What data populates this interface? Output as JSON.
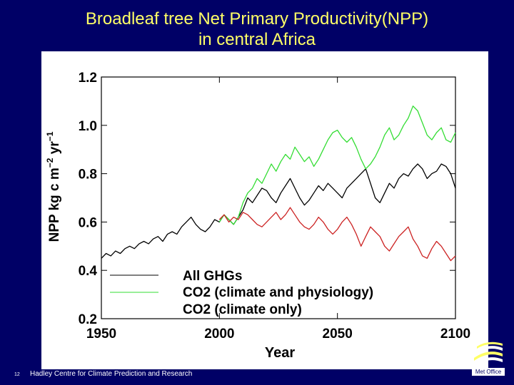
{
  "slide": {
    "title_line1": "Broadleaf tree Net Primary Productivity(NPP)",
    "title_line2": "in central Africa",
    "footer": "Hadley Centre for Climate Prediction and Research",
    "slide_number": "12",
    "logo_text": "Met Office"
  },
  "colors": {
    "background": "#000066",
    "title": "#ffff66",
    "black": "#000000",
    "green": "#33dd33",
    "red": "#cc2222"
  },
  "chart_data": {
    "type": "line",
    "title": "",
    "xlabel": "Year",
    "ylabel": "NPP kg c m⁻² yr⁻¹",
    "ylabel_main": "NPP kg c m",
    "ylabel_sup1": "−2",
    "ylabel_mid": " yr",
    "ylabel_sup2": "−1",
    "xlim": [
      1950,
      2100
    ],
    "ylim": [
      0.2,
      1.2
    ],
    "xticks": [
      1950,
      2000,
      2050,
      2100
    ],
    "xtick_labels": [
      "1950",
      "2000",
      "2050",
      "2100"
    ],
    "yticks": [
      0.2,
      0.4,
      0.6,
      0.8,
      1.0,
      1.2
    ],
    "ytick_labels": [
      "0.2",
      "0.4",
      "0.6",
      "0.8",
      "1.0",
      "1.2"
    ],
    "legend_placement": "bottom",
    "legend": [
      "All GHGs",
      "CO2 (climate and physiology)",
      "CO2 (climate only)"
    ],
    "series": [
      {
        "name": "All GHGs",
        "color": "#000000",
        "x": [
          1950,
          1952,
          1954,
          1956,
          1958,
          1960,
          1962,
          1964,
          1966,
          1968,
          1970,
          1972,
          1974,
          1976,
          1978,
          1980,
          1982,
          1984,
          1986,
          1988,
          1990,
          1992,
          1994,
          1996,
          1998,
          2000,
          2002,
          2004,
          2006,
          2008,
          2010,
          2012,
          2014,
          2016,
          2018,
          2020,
          2022,
          2024,
          2026,
          2028,
          2030,
          2032,
          2034,
          2036,
          2038,
          2040,
          2042,
          2044,
          2046,
          2048,
          2050,
          2052,
          2054,
          2056,
          2058,
          2060,
          2062,
          2064,
          2066,
          2068,
          2070,
          2072,
          2074,
          2076,
          2078,
          2080,
          2082,
          2084,
          2086,
          2088,
          2090,
          2092,
          2094,
          2096,
          2098,
          2100
        ],
        "y": [
          0.45,
          0.47,
          0.46,
          0.48,
          0.47,
          0.49,
          0.5,
          0.49,
          0.51,
          0.52,
          0.51,
          0.53,
          0.54,
          0.52,
          0.55,
          0.56,
          0.55,
          0.58,
          0.6,
          0.62,
          0.59,
          0.57,
          0.56,
          0.58,
          0.61,
          0.6,
          0.63,
          0.61,
          0.59,
          0.62,
          0.65,
          0.7,
          0.68,
          0.71,
          0.74,
          0.73,
          0.7,
          0.68,
          0.72,
          0.75,
          0.78,
          0.74,
          0.7,
          0.67,
          0.69,
          0.72,
          0.75,
          0.73,
          0.76,
          0.74,
          0.72,
          0.7,
          0.74,
          0.76,
          0.78,
          0.8,
          0.82,
          0.76,
          0.7,
          0.68,
          0.72,
          0.76,
          0.74,
          0.78,
          0.8,
          0.79,
          0.82,
          0.84,
          0.82,
          0.78,
          0.8,
          0.81,
          0.84,
          0.83,
          0.8,
          0.74
        ]
      },
      {
        "name": "CO2 (climate and physiology)",
        "color": "#33dd33",
        "x": [
          2000,
          2002,
          2004,
          2006,
          2008,
          2010,
          2012,
          2014,
          2016,
          2018,
          2020,
          2022,
          2024,
          2026,
          2028,
          2030,
          2032,
          2034,
          2036,
          2038,
          2040,
          2042,
          2044,
          2046,
          2048,
          2050,
          2052,
          2054,
          2056,
          2058,
          2060,
          2062,
          2064,
          2066,
          2068,
          2070,
          2072,
          2074,
          2076,
          2078,
          2080,
          2082,
          2084,
          2086,
          2088,
          2090,
          2092,
          2094,
          2096,
          2098,
          2100
        ],
        "y": [
          0.6,
          0.63,
          0.61,
          0.59,
          0.62,
          0.68,
          0.72,
          0.74,
          0.78,
          0.76,
          0.8,
          0.84,
          0.81,
          0.85,
          0.88,
          0.86,
          0.91,
          0.88,
          0.85,
          0.87,
          0.83,
          0.86,
          0.9,
          0.94,
          0.97,
          0.98,
          0.95,
          0.93,
          0.95,
          0.91,
          0.86,
          0.82,
          0.84,
          0.87,
          0.91,
          0.96,
          0.99,
          0.94,
          0.96,
          1.0,
          1.03,
          1.08,
          1.06,
          1.01,
          0.96,
          0.94,
          0.97,
          0.99,
          0.94,
          0.93,
          0.97
        ]
      },
      {
        "name": "CO2 (climate only)",
        "color": "#cc2222",
        "x": [
          2000,
          2002,
          2004,
          2006,
          2008,
          2010,
          2012,
          2014,
          2016,
          2018,
          2020,
          2022,
          2024,
          2026,
          2028,
          2030,
          2032,
          2034,
          2036,
          2038,
          2040,
          2042,
          2044,
          2046,
          2048,
          2050,
          2052,
          2054,
          2056,
          2058,
          2060,
          2062,
          2064,
          2066,
          2068,
          2070,
          2072,
          2074,
          2076,
          2078,
          2080,
          2082,
          2084,
          2086,
          2088,
          2090,
          2092,
          2094,
          2096,
          2098,
          2100
        ],
        "y": [
          0.61,
          0.63,
          0.6,
          0.62,
          0.61,
          0.64,
          0.63,
          0.61,
          0.59,
          0.58,
          0.6,
          0.62,
          0.64,
          0.61,
          0.63,
          0.66,
          0.63,
          0.6,
          0.58,
          0.57,
          0.59,
          0.62,
          0.6,
          0.57,
          0.55,
          0.57,
          0.6,
          0.62,
          0.59,
          0.55,
          0.5,
          0.54,
          0.58,
          0.56,
          0.54,
          0.5,
          0.48,
          0.51,
          0.54,
          0.56,
          0.58,
          0.53,
          0.5,
          0.46,
          0.45,
          0.49,
          0.52,
          0.5,
          0.47,
          0.44,
          0.46
        ]
      }
    ]
  }
}
